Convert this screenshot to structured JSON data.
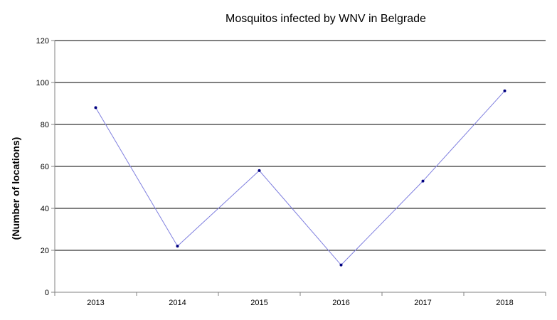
{
  "chart_data": {
    "type": "line",
    "title": "Mosquitos infected by WNV in Belgrade",
    "xlabel": "",
    "ylabel": "(Number of locations)",
    "categories": [
      "2013",
      "2014",
      "2015",
      "2016",
      "2017",
      "2018"
    ],
    "series": [
      {
        "values": [
          88,
          22,
          58,
          13,
          53,
          96
        ]
      }
    ],
    "ylim": [
      0,
      120
    ],
    "yticks": [
      0,
      20,
      40,
      60,
      80,
      100,
      120
    ],
    "grid": true,
    "legend": "none",
    "colors": {
      "line": "#7f7fdf",
      "marker": "#000080",
      "grid": "#000000",
      "axis": "#808080"
    }
  }
}
